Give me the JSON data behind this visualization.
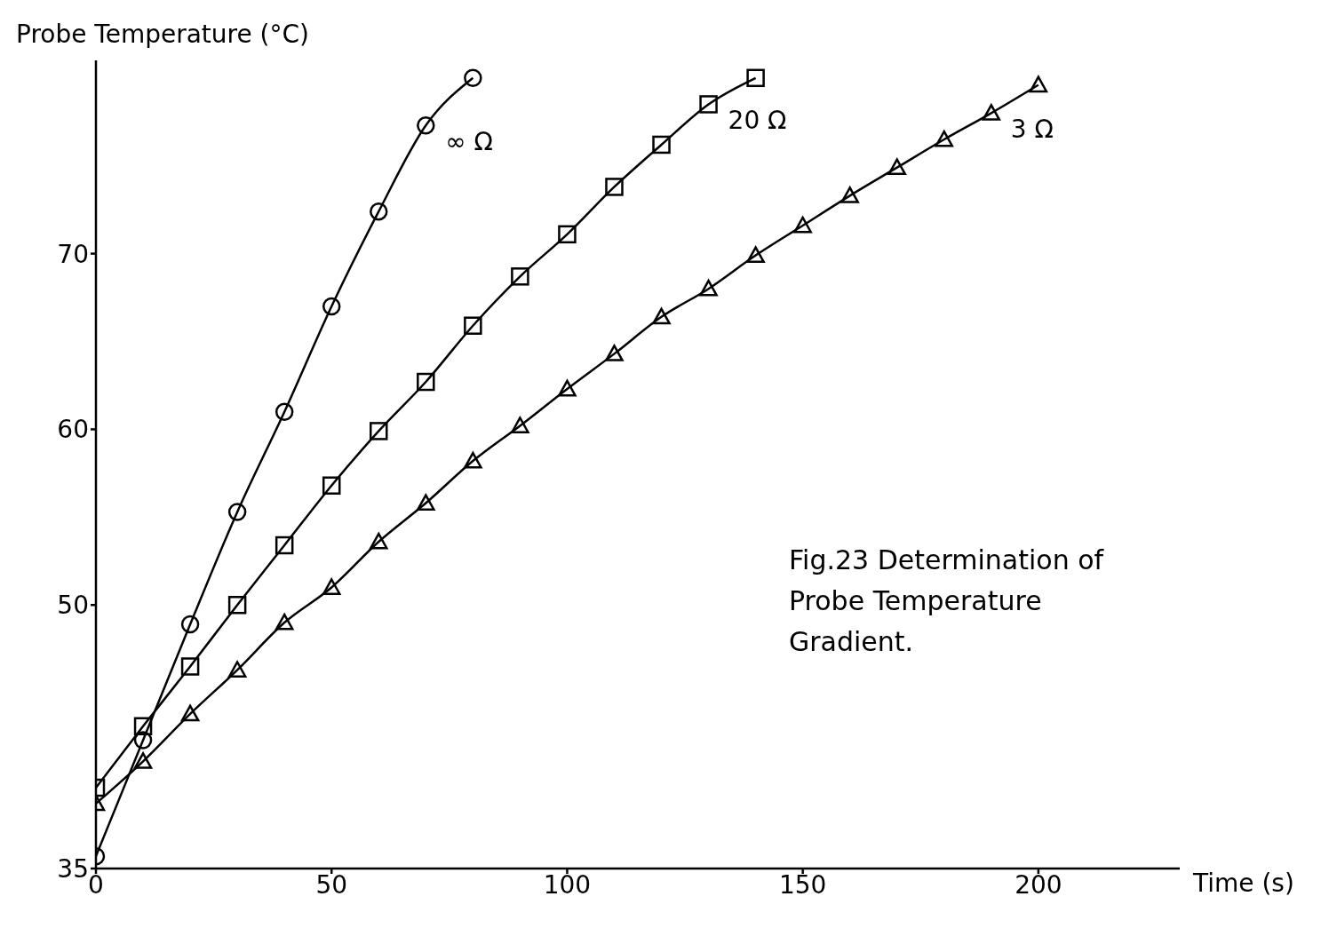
{
  "chart_data": {
    "type": "line",
    "xlabel": "Time (s)",
    "ylabel": "Probe Temperature (°C)",
    "annotations": [
      "Fig.23 Determination of Probe Temperature Gradient."
    ],
    "xlim": [
      0,
      230
    ],
    "xticks": [
      0,
      50,
      100,
      150,
      200
    ],
    "ylim": [
      35,
      81
    ],
    "yticks": [
      35,
      50,
      60,
      70
    ],
    "grid": false,
    "legend": false,
    "line_style": "solid",
    "series": [
      {
        "name": "∞ Ω",
        "color": "#000000",
        "marker": "circle",
        "x": [
          0,
          10,
          20,
          30,
          40,
          50,
          60,
          70,
          80
        ],
        "values": [
          35.7,
          42.3,
          48.9,
          55.3,
          61.0,
          67.0,
          72.4,
          77.3,
          80.0
        ]
      },
      {
        "name": "20 Ω",
        "color": "#000000",
        "marker": "square",
        "x": [
          0,
          10,
          20,
          30,
          40,
          50,
          60,
          70,
          80,
          90,
          100,
          110,
          120,
          130,
          140
        ],
        "values": [
          39.6,
          43.1,
          46.5,
          50.0,
          53.4,
          56.8,
          59.9,
          62.7,
          65.9,
          68.7,
          71.1,
          73.8,
          76.2,
          78.5,
          80.0
        ]
      },
      {
        "name": "3 Ω",
        "color": "#000000",
        "marker": "triangle",
        "x": [
          0,
          10,
          20,
          30,
          40,
          50,
          60,
          70,
          80,
          90,
          100,
          110,
          120,
          130,
          140,
          150,
          160,
          170,
          180,
          190,
          200
        ],
        "values": [
          38.7,
          41.1,
          43.8,
          46.3,
          49.0,
          51.0,
          53.6,
          55.8,
          58.2,
          60.2,
          62.3,
          64.3,
          66.4,
          68.0,
          69.9,
          71.6,
          73.3,
          74.9,
          76.5,
          78.0,
          79.6
        ]
      }
    ]
  }
}
